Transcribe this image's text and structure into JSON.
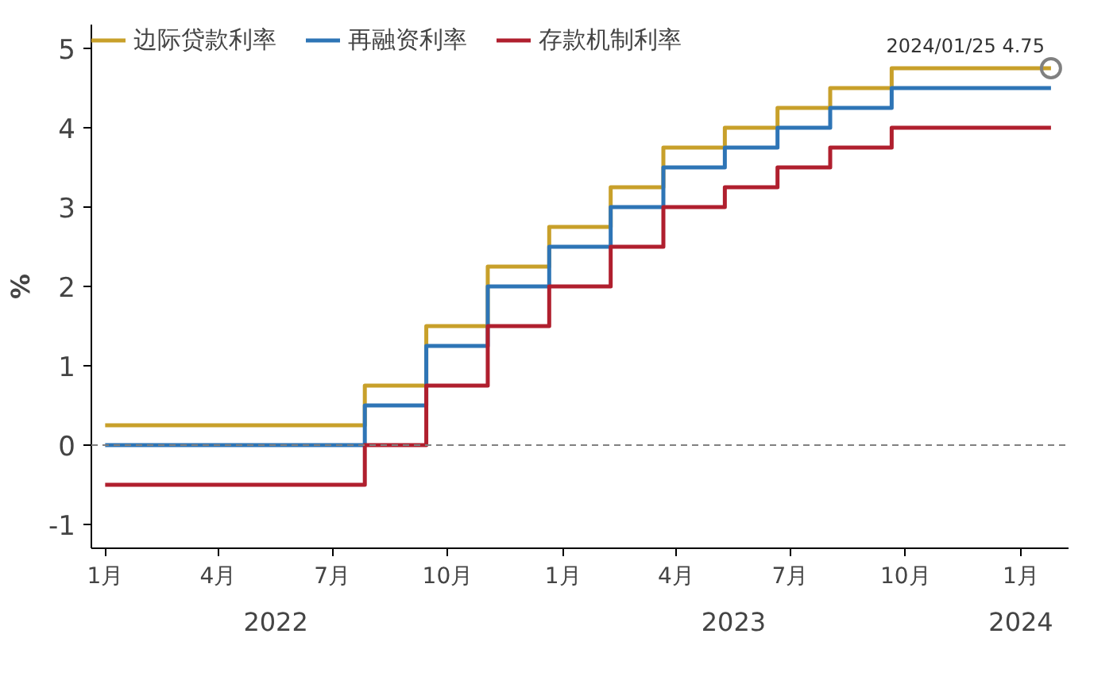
{
  "chart_data": {
    "type": "step",
    "ylabel": "%",
    "x": [
      "2022-01-01",
      "2022-07-27",
      "2022-09-14",
      "2022-11-02",
      "2022-12-21",
      "2023-02-08",
      "2023-03-22",
      "2023-05-10",
      "2023-06-21",
      "2023-08-02",
      "2023-09-20",
      "2024-01-25"
    ],
    "series": [
      {
        "name": "边际贷款利率",
        "color": "#c8a02a",
        "values": [
          0.25,
          0.75,
          1.5,
          2.25,
          2.75,
          3.25,
          3.75,
          4.0,
          4.25,
          4.5,
          4.75,
          4.75
        ]
      },
      {
        "name": "再融资利率",
        "color": "#2e75b6",
        "values": [
          0,
          0.5,
          1.25,
          2.0,
          2.5,
          3.0,
          3.5,
          3.75,
          4.0,
          4.25,
          4.5,
          4.5
        ]
      },
      {
        "name": "存款机制利率",
        "color": "#b01f2e",
        "values": [
          -0.5,
          0,
          0.75,
          1.5,
          2.0,
          2.5,
          3.0,
          3.25,
          3.5,
          3.75,
          4.0,
          4.0
        ]
      }
    ],
    "xlim": [
      "2021-12-21",
      "2024-02-08"
    ],
    "xticks": [
      {
        "value": "2022-01-01",
        "label": "1月"
      },
      {
        "value": "2022-04-01",
        "label": "4月"
      },
      {
        "value": "2022-07-01",
        "label": "7月"
      },
      {
        "value": "2022-10-01",
        "label": "10月"
      },
      {
        "value": "2023-01-01",
        "label": "1月"
      },
      {
        "value": "2023-04-01",
        "label": "4月"
      },
      {
        "value": "2023-07-01",
        "label": "7月"
      },
      {
        "value": "2023-10-01",
        "label": "10月"
      },
      {
        "value": "2024-01-01",
        "label": "1月"
      }
    ],
    "ylim": [
      -1.3,
      5.3
    ],
    "yticks": [
      {
        "value": -1,
        "label": "-1"
      },
      0,
      1,
      2,
      3,
      4,
      5
    ],
    "ref_lines": [
      {
        "axis": "y",
        "value": 0,
        "color": "#808080",
        "line_style": "dashed"
      }
    ],
    "annotations": [
      {
        "text": "2024/01/25 4.75",
        "x": "2024-01-25",
        "y": 4.75
      },
      "2022",
      "2023",
      "2024"
    ],
    "legend": "top",
    "grid": false,
    "marker": "none",
    "line_style": "solid"
  }
}
